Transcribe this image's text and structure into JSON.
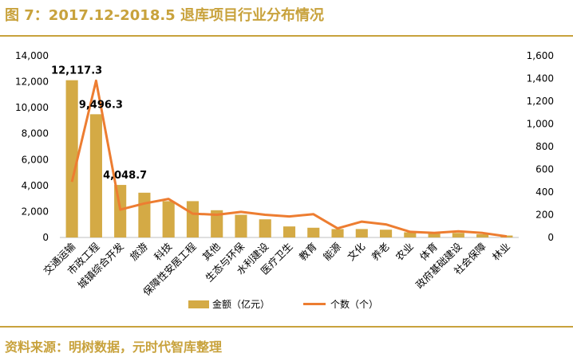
{
  "header": {
    "title": "图 7：2017.12-2018.5 退库项目行业分布情况"
  },
  "footer": {
    "source": "资料来源：明树数据，元时代智库整理"
  },
  "colors": {
    "accent": "#c8a23c",
    "bar": "#d4aa45",
    "line": "#ed7d31"
  },
  "chart_data": {
    "type": "bar",
    "categories": [
      "交通运输",
      "市政工程",
      "城镇综合开发",
      "旅游",
      "科技",
      "保障性安居工程",
      "其他",
      "生态与环保",
      "水利建设",
      "医疗卫生",
      "教育",
      "能源",
      "文化",
      "养老",
      "农业",
      "体育",
      "政府基础建设",
      "社会保障",
      "林业"
    ],
    "series": [
      {
        "name": "金额（亿元）",
        "type": "bar",
        "axis": "left",
        "values": [
          12117.3,
          9496.3,
          4048.7,
          3450,
          2800,
          2800,
          2100,
          1750,
          1400,
          850,
          750,
          650,
          650,
          600,
          400,
          300,
          350,
          250,
          150
        ]
      },
      {
        "name": "个数（个）",
        "type": "line",
        "axis": "right",
        "values": [
          490,
          1380,
          245,
          300,
          340,
          210,
          200,
          225,
          200,
          185,
          205,
          80,
          140,
          115,
          50,
          40,
          55,
          40,
          10
        ]
      }
    ],
    "data_labels": [
      {
        "index": 0,
        "text": "12,117.3"
      },
      {
        "index": 1,
        "text": "9,496.3"
      },
      {
        "index": 2,
        "text": "4,048.7"
      }
    ],
    "y_left": {
      "min": 0,
      "max": 14000,
      "ticks": [
        "0",
        "2,000",
        "4,000",
        "6,000",
        "8,000",
        "10,000",
        "12,000",
        "14,000"
      ]
    },
    "y_right": {
      "min": 0,
      "max": 1600,
      "ticks": [
        "0",
        "200",
        "400",
        "600",
        "800",
        "1,000",
        "1,200",
        "1,400",
        "1,600"
      ]
    },
    "grid": false,
    "legend_position": "bottom"
  }
}
